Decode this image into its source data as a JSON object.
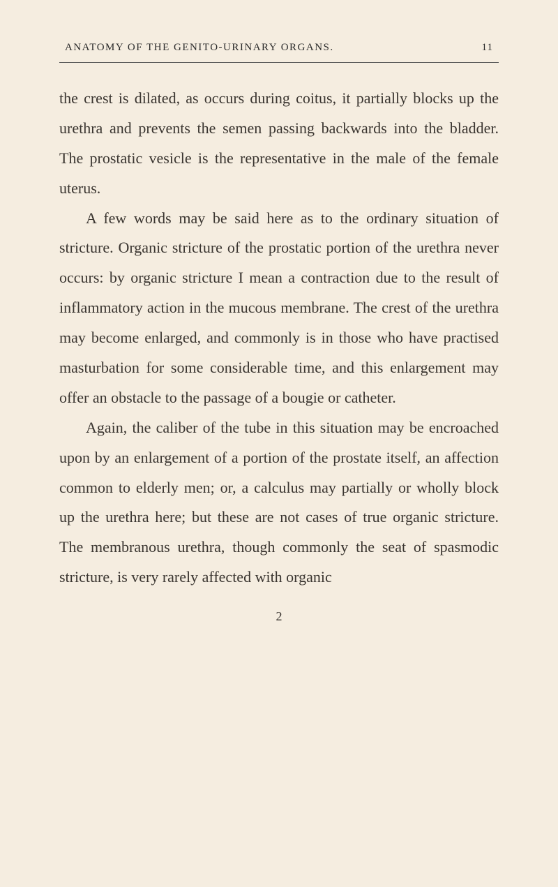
{
  "header": {
    "title": "ANATOMY OF THE GENITO-URINARY ORGANS.",
    "page_number": "11"
  },
  "paragraphs": {
    "p1": "the crest is dilated, as occurs during coitus, it partially blocks up the urethra and prevents the semen passing backwards into the bladder. The prostatic vesicle is the representative in the male of the female uterus.",
    "p2": "A few words may be said here as to the ordinary situation of stricture. Organic stric­ture of the prostatic portion of the urethra never occurs: by organic stricture I mean a contraction due to the result of inflammatory action in the mucous membrane. The crest of the urethra may become enlarged, and commonly is in those who have practised masturbation for some considerable time, and this enlargement may offer an obstacle to the passage of a bougie or catheter.",
    "p3": "Again, the caliber of the tube in this situation may be encroached upon by an enlargement of a portion of the prostate itself, an affection common to elderly men; or, a calculus may partially or wholly block up the urethra here; but these are not cases of true organic stricture. The membranous urethra, though commonly the seat of spasmodic stricture, is very rarely affected with organic"
  },
  "footer": {
    "signature_number": "2"
  },
  "style": {
    "background_color": "#f5ede0",
    "text_color": "#3a3530",
    "body_font_size": 22,
    "body_line_height": 1.95,
    "header_font_size": 15,
    "header_letter_spacing": 1.5
  }
}
